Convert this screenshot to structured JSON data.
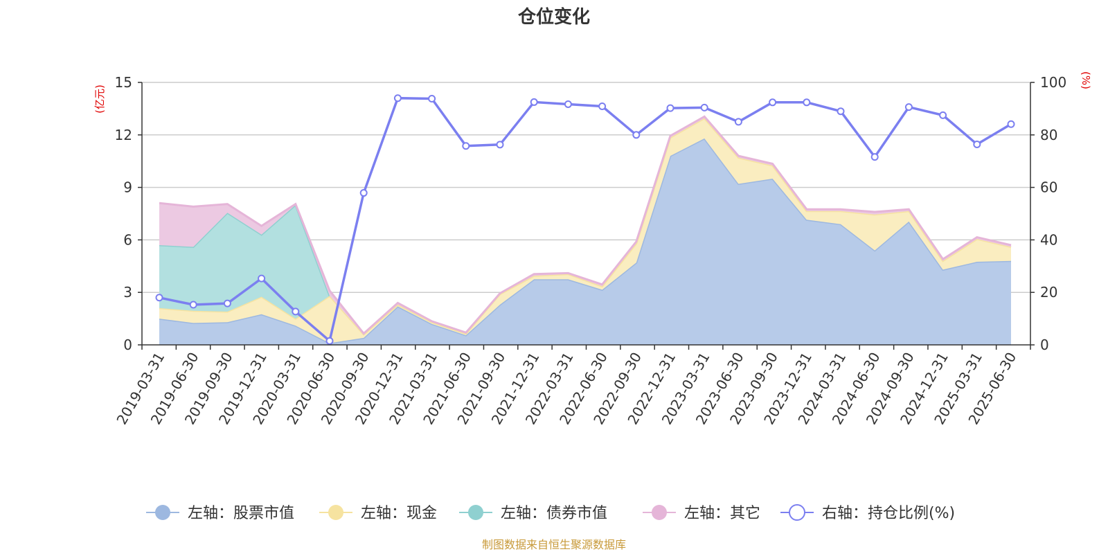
{
  "chart_data": {
    "type": "area",
    "title": "仓位变化",
    "left_unit": "(亿元)",
    "right_unit": "(%)",
    "left_axis": {
      "min": 0,
      "max": 15,
      "ticks": [
        "0",
        "3",
        "6",
        "9",
        "12",
        "15"
      ]
    },
    "right_axis": {
      "min": 0,
      "max": 100,
      "ticks": [
        "0",
        "20",
        "40",
        "60",
        "80",
        "100"
      ]
    },
    "categories": [
      "2019-03-31",
      "2019-06-30",
      "2019-09-30",
      "2019-12-31",
      "2020-03-31",
      "2020-06-30",
      "2020-09-30",
      "2020-12-31",
      "2021-03-31",
      "2021-06-30",
      "2021-09-30",
      "2021-12-31",
      "2022-03-31",
      "2022-06-30",
      "2022-09-30",
      "2022-12-31",
      "2023-03-31",
      "2023-06-30",
      "2023-09-30",
      "2023-12-31",
      "2024-03-31",
      "2024-06-30",
      "2024-09-30",
      "2024-12-31",
      "2025-03-31",
      "2025-06-30"
    ],
    "series": [
      {
        "name": "左轴：股票市值",
        "axis": "left",
        "stack": true,
        "fill": "#b7cbe9",
        "stroke": "#9db8e0",
        "values": [
          1.5,
          1.25,
          1.3,
          1.75,
          1.1,
          0.1,
          0.4,
          2.2,
          1.2,
          0.55,
          2.3,
          3.75,
          3.75,
          3.15,
          4.7,
          10.8,
          11.8,
          9.2,
          9.5,
          7.15,
          6.9,
          5.4,
          7.05,
          4.3,
          4.75,
          4.8
        ]
      },
      {
        "name": "左轴：现金",
        "axis": "left",
        "stack": true,
        "fill": "#faedc0",
        "stroke": "#f6e3a0",
        "values": [
          0.6,
          0.7,
          0.6,
          1.0,
          0.4,
          2.7,
          0.2,
          0.1,
          0.1,
          0.1,
          0.6,
          0.2,
          0.3,
          0.2,
          1.1,
          1.05,
          1.15,
          1.5,
          0.75,
          0.5,
          0.75,
          2.05,
          0.6,
          0.5,
          1.3,
          0.8
        ]
      },
      {
        "name": "左轴：债券市值",
        "axis": "left",
        "stack": true,
        "fill": "#b2e0e0",
        "stroke": "#8fd0d0",
        "values": [
          3.6,
          3.65,
          5.65,
          3.55,
          6.5,
          0,
          0,
          0,
          0,
          0,
          0,
          0,
          0,
          0,
          0,
          0,
          0,
          0,
          0,
          0,
          0,
          0,
          0,
          0,
          0,
          0
        ]
      },
      {
        "name": "左轴：其它",
        "axis": "left",
        "stack": true,
        "fill": "#ecc9e2",
        "stroke": "#e5b5d8",
        "values": [
          2.4,
          2.3,
          0.5,
          0.5,
          0.05,
          0.3,
          0.05,
          0.1,
          0.05,
          0.05,
          0.05,
          0.1,
          0.05,
          0.1,
          0.1,
          0.1,
          0.1,
          0.1,
          0.1,
          0.1,
          0.1,
          0.15,
          0.1,
          0.1,
          0.1,
          0.1
        ]
      },
      {
        "name": "右轴：持仓比例(%)",
        "axis": "right",
        "type": "line",
        "stroke": "#7b7ff0",
        "values": [
          18,
          15.3,
          15.8,
          25.3,
          12.7,
          1.5,
          57.9,
          94,
          93.8,
          75.8,
          76.3,
          92.5,
          91.7,
          90.9,
          80,
          90.2,
          90.4,
          85,
          92.4,
          92.4,
          89,
          71.6,
          90.6,
          87.5,
          76.4,
          84.1
        ]
      }
    ],
    "legend_position": "bottom",
    "grid": true,
    "source": "制图数据来自恒生聚源数据库"
  }
}
